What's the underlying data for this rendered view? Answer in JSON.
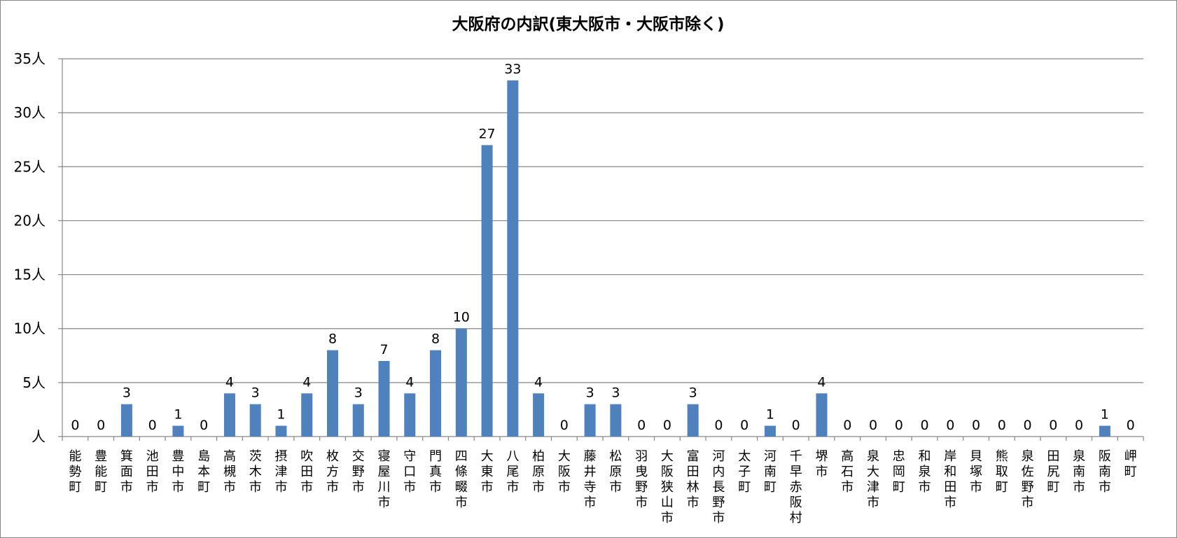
{
  "chart_data": {
    "type": "bar",
    "title": "大阪府の内訳(東大阪市・大阪市除く)",
    "unit_suffix": "人",
    "ylim": [
      0,
      35
    ],
    "yticks": [
      0,
      5,
      10,
      15,
      20,
      25,
      30,
      35
    ],
    "ytick_labels": [
      "人",
      "5人",
      "10人",
      "15人",
      "20人",
      "25人",
      "30人",
      "35人"
    ],
    "grid": true,
    "bar_color": "#4F81BD",
    "categories": [
      "能勢町",
      "豊能町",
      "箕面市",
      "池田市",
      "豊中市",
      "島本町",
      "高槻市",
      "茨木市",
      "摂津市",
      "吹田市",
      "枚方市",
      "交野市",
      "寝屋川市",
      "守口市",
      "門真市",
      "四條畷市",
      "大東市",
      "八尾市",
      "柏原市",
      "大阪市",
      "藤井寺市",
      "松原市",
      "羽曳野市",
      "大阪狭山市",
      "富田林市",
      "河内長野市",
      "太子町",
      "河南町",
      "千早赤阪村",
      "堺市",
      "高石市",
      "泉大津市",
      "忠岡町",
      "和泉市",
      "岸和田市",
      "貝塚市",
      "熊取町",
      "泉佐野市",
      "田尻町",
      "泉南市",
      "阪南市",
      "岬町"
    ],
    "values": [
      0,
      0,
      3,
      0,
      1,
      0,
      4,
      3,
      1,
      4,
      8,
      3,
      7,
      4,
      8,
      10,
      27,
      33,
      4,
      0,
      3,
      3,
      0,
      0,
      3,
      0,
      0,
      1,
      0,
      4,
      0,
      0,
      0,
      0,
      0,
      0,
      0,
      0,
      0,
      0,
      1,
      0
    ]
  }
}
